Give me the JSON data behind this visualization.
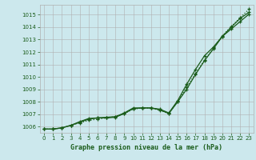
{
  "title": "Graphe pression niveau de la mer (hPa)",
  "bg_color": "#cce8ed",
  "grid_color": "#b0b0b0",
  "line_color": "#1a5c1a",
  "xlim": [
    -0.5,
    23.5
  ],
  "ylim": [
    1005.5,
    1015.8
  ],
  "xticks": [
    0,
    1,
    2,
    3,
    4,
    5,
    6,
    7,
    8,
    9,
    10,
    11,
    12,
    13,
    14,
    15,
    16,
    17,
    18,
    19,
    20,
    21,
    22,
    23
  ],
  "yticks": [
    1006,
    1007,
    1008,
    1009,
    1010,
    1011,
    1012,
    1013,
    1014,
    1015
  ],
  "line1_dotted": [
    1005.8,
    1005.8,
    1005.9,
    1006.1,
    1006.3,
    1006.5,
    1006.6,
    1006.7,
    1006.8,
    1007.05,
    1007.4,
    1007.5,
    1007.5,
    1007.3,
    1007.05,
    1008.0,
    1009.2,
    1010.25,
    1011.35,
    1012.3,
    1013.3,
    1014.05,
    1014.75,
    1015.45
  ],
  "line2_solid": [
    1005.8,
    1005.8,
    1005.9,
    1006.1,
    1006.35,
    1006.6,
    1006.7,
    1006.7,
    1006.75,
    1007.05,
    1007.45,
    1007.5,
    1007.5,
    1007.35,
    1007.05,
    1008.0,
    1009.0,
    1010.2,
    1011.3,
    1012.25,
    1013.25,
    1014.0,
    1014.7,
    1015.2
  ],
  "line3_solid": [
    1005.8,
    1005.8,
    1005.9,
    1006.1,
    1006.4,
    1006.65,
    1006.7,
    1006.75,
    1006.8,
    1007.1,
    1007.5,
    1007.5,
    1007.5,
    1007.4,
    1007.1,
    1008.1,
    1009.4,
    1010.6,
    1011.7,
    1012.4,
    1013.25,
    1013.85,
    1014.45,
    1015.05
  ]
}
